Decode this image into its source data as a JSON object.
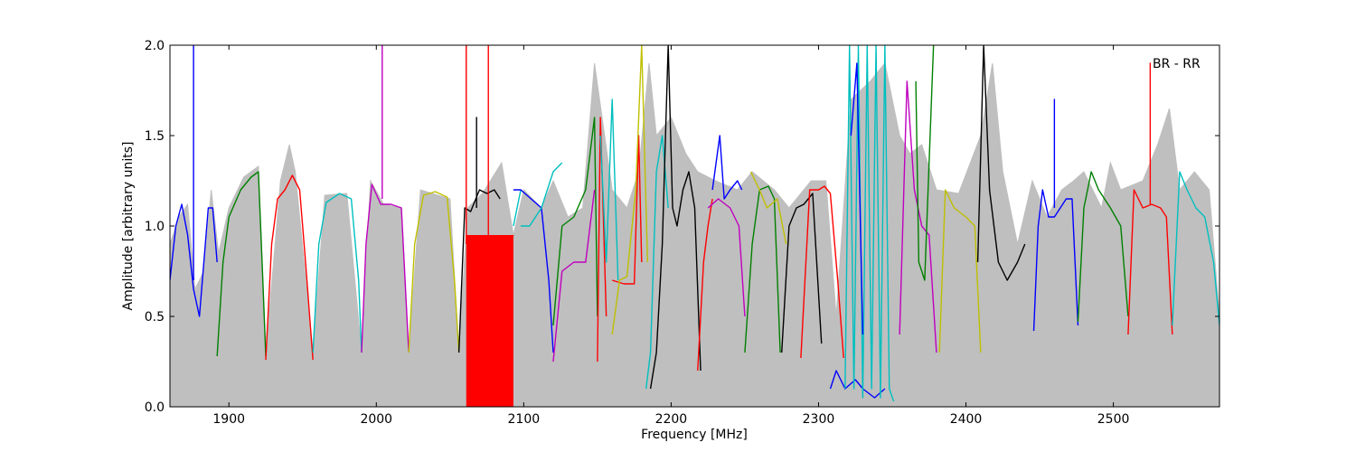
{
  "chart_data": {
    "type": "line",
    "title": "",
    "xlabel": "Frequency [MHz]",
    "ylabel": "Amplitude [arbitrary units]",
    "xlim": [
      1860,
      2572
    ],
    "ylim": [
      0.0,
      2.0
    ],
    "xticks": [
      1900,
      2000,
      2100,
      2200,
      2300,
      2400,
      2500
    ],
    "yticks": [
      0.0,
      0.5,
      1.0,
      1.5,
      2.0
    ],
    "xtick_labels": [
      "1900",
      "2000",
      "2100",
      "2200",
      "2300",
      "2400",
      "2500"
    ],
    "ytick_labels": [
      "0.0",
      "0.5",
      "1.0",
      "1.5",
      "2.0"
    ],
    "annotation": "BR - RR",
    "grid": false,
    "envelope_color": "#bfbfbf",
    "envelope": [
      [
        1860,
        0.9
      ],
      [
        1866,
        1.05
      ],
      [
        1872,
        1.12
      ],
      [
        1877,
        0.65
      ],
      [
        1883,
        0.75
      ],
      [
        1888,
        1.2
      ],
      [
        1893,
        0.85
      ],
      [
        1900,
        1.1
      ],
      [
        1910,
        1.27
      ],
      [
        1920,
        1.33
      ],
      [
        1925,
        0.3
      ],
      [
        1935,
        1.25
      ],
      [
        1941,
        1.45
      ],
      [
        1945,
        1.3
      ],
      [
        1957,
        0.3
      ],
      [
        1965,
        1.17
      ],
      [
        1980,
        1.18
      ],
      [
        1990,
        0.3
      ],
      [
        1996,
        1.25
      ],
      [
        2005,
        1.12
      ],
      [
        2017,
        1.1
      ],
      [
        2022,
        0.3
      ],
      [
        2030,
        1.2
      ],
      [
        2050,
        1.15
      ],
      [
        2056,
        0.3
      ],
      [
        2062,
        1.1
      ],
      [
        2072,
        1.18
      ],
      [
        2085,
        1.35
      ],
      [
        2093,
        0.95
      ],
      [
        2100,
        1.2
      ],
      [
        2112,
        1.1
      ],
      [
        2120,
        1.25
      ],
      [
        2130,
        1.05
      ],
      [
        2140,
        1.1
      ],
      [
        2148,
        1.9
      ],
      [
        2160,
        1.2
      ],
      [
        2170,
        1.1
      ],
      [
        2178,
        1.3
      ],
      [
        2185,
        1.9
      ],
      [
        2190,
        1.5
      ],
      [
        2200,
        1.6
      ],
      [
        2210,
        1.4
      ],
      [
        2218,
        1.3
      ],
      [
        2230,
        1.25
      ],
      [
        2245,
        1.2
      ],
      [
        2255,
        1.3
      ],
      [
        2270,
        1.2
      ],
      [
        2280,
        1.1
      ],
      [
        2295,
        1.25
      ],
      [
        2305,
        1.25
      ],
      [
        2312,
        0.5
      ],
      [
        2322,
        1.7
      ],
      [
        2335,
        1.8
      ],
      [
        2345,
        1.9
      ],
      [
        2355,
        1.5
      ],
      [
        2362,
        1.4
      ],
      [
        2370,
        1.45
      ],
      [
        2380,
        1.2
      ],
      [
        2395,
        1.18
      ],
      [
        2410,
        1.5
      ],
      [
        2418,
        1.9
      ],
      [
        2425,
        1.3
      ],
      [
        2435,
        0.9
      ],
      [
        2445,
        1.25
      ],
      [
        2455,
        1.05
      ],
      [
        2465,
        1.2
      ],
      [
        2473,
        1.25
      ],
      [
        2480,
        1.3
      ],
      [
        2492,
        1.1
      ],
      [
        2498,
        1.35
      ],
      [
        2505,
        1.2
      ],
      [
        2520,
        1.25
      ],
      [
        2530,
        1.45
      ],
      [
        2538,
        1.65
      ],
      [
        2545,
        1.2
      ],
      [
        2555,
        1.3
      ],
      [
        2565,
        1.2
      ],
      [
        2572,
        0.5
      ]
    ],
    "series": [
      {
        "color": "#0000ff",
        "x": [
          1860,
          1864,
          1868,
          1872,
          1876,
          1880,
          1883,
          1886,
          1889,
          1892
        ],
        "y": [
          0.7,
          1.0,
          1.12,
          0.95,
          0.65,
          0.5,
          0.8,
          1.1,
          1.1,
          0.8
        ]
      },
      {
        "color": "#0000ff",
        "x": [
          1876,
          1876,
          1876
        ],
        "y": [
          0.7,
          2.0,
          0.7
        ]
      },
      {
        "color": "#008000",
        "x": [
          1892,
          1896,
          1900,
          1908,
          1915,
          1920,
          1923,
          1925
        ],
        "y": [
          0.28,
          0.8,
          1.05,
          1.2,
          1.27,
          1.3,
          0.7,
          0.28
        ]
      },
      {
        "color": "#ff0000",
        "x": [
          1925,
          1929,
          1933,
          1938,
          1943,
          1948,
          1952,
          1957
        ],
        "y": [
          0.26,
          0.9,
          1.15,
          1.2,
          1.28,
          1.2,
          0.8,
          0.26
        ]
      },
      {
        "color": "#00bfbf",
        "x": [
          1957,
          1961,
          1966,
          1975,
          1983,
          1988,
          1990
        ],
        "y": [
          0.3,
          0.9,
          1.13,
          1.18,
          1.15,
          0.7,
          0.3
        ]
      },
      {
        "color": "#bf00bf",
        "x": [
          1990,
          1993,
          1997,
          2003,
          2010,
          2017,
          2022
        ],
        "y": [
          0.3,
          0.9,
          1.23,
          1.12,
          1.12,
          1.1,
          0.3
        ]
      },
      {
        "color": "#bf00bf",
        "x": [
          2004,
          2004,
          2004
        ],
        "y": [
          1.15,
          2.0,
          1.15
        ]
      },
      {
        "color": "#bfbf00",
        "x": [
          2022,
          2026,
          2032,
          2040,
          2048,
          2053,
          2056
        ],
        "y": [
          0.3,
          0.9,
          1.17,
          1.19,
          1.16,
          0.7,
          0.3
        ]
      },
      {
        "color": "#000000",
        "x": [
          2056,
          2060,
          2064,
          2070,
          2075,
          2080,
          2084
        ],
        "y": [
          0.3,
          1.1,
          1.08,
          1.2,
          1.18,
          1.2,
          1.15
        ]
      },
      {
        "color": "#000000",
        "x": [
          2068,
          2068,
          2068
        ],
        "y": [
          1.1,
          1.6,
          1.1
        ]
      },
      {
        "color": "#ff0000",
        "x": [
          2062,
          2070,
          2078,
          2086,
          2093
        ],
        "y": [
          0.95,
          0.85,
          0.9,
          0.85,
          0.95
        ]
      },
      {
        "color": "#ff0000",
        "x": [
          2076,
          2076,
          2076
        ],
        "y": [
          0.9,
          2.0,
          0.9
        ]
      },
      {
        "color": "#ff0000",
        "x": [
          2061,
          2061,
          2061
        ],
        "y": [
          0.9,
          2.0,
          0.9
        ]
      },
      {
        "color": "#00bfbf",
        "x": [
          2093,
          2098
        ],
        "y": [
          1.0,
          1.2
        ]
      },
      {
        "color": "#0000ff",
        "x": [
          2093,
          2098,
          2105,
          2112,
          2117,
          2120
        ],
        "y": [
          1.2,
          1.2,
          1.15,
          1.1,
          0.7,
          0.3
        ]
      },
      {
        "color": "#00bfbf",
        "x": [
          2098,
          2104,
          2112,
          2120,
          2126
        ],
        "y": [
          1.0,
          1.0,
          1.1,
          1.3,
          1.35
        ]
      },
      {
        "color": "#008000",
        "x": [
          2120,
          2126,
          2134,
          2142,
          2148,
          2150
        ],
        "y": [
          0.45,
          1.0,
          1.05,
          1.2,
          1.6,
          0.5
        ]
      },
      {
        "color": "#bf00bf",
        "x": [
          2120,
          2126,
          2134,
          2142,
          2148
        ],
        "y": [
          0.25,
          0.75,
          0.8,
          0.8,
          1.2
        ]
      },
      {
        "color": "#ff0000",
        "x": [
          2150,
          2152,
          2156
        ],
        "y": [
          0.25,
          1.6,
          0.5
        ]
      },
      {
        "color": "#00bfbf",
        "x": [
          2152,
          2156,
          2160,
          2164
        ],
        "y": [
          1.5,
          0.8,
          1.7,
          0.7
        ]
      },
      {
        "color": "#ff0000",
        "x": [
          2160,
          2168,
          2175,
          2178,
          2180
        ],
        "y": [
          0.7,
          0.68,
          0.68,
          1.5,
          0.8
        ]
      },
      {
        "color": "#bfbf00",
        "x": [
          2160,
          2165,
          2170,
          2176,
          2180,
          2184
        ],
        "y": [
          0.4,
          0.7,
          0.72,
          1.2,
          2.0,
          0.8
        ]
      },
      {
        "color": "#00bfbf",
        "x": [
          2183,
          2186,
          2190,
          2194,
          2198
        ],
        "y": [
          0.1,
          0.3,
          1.3,
          1.5,
          1.1
        ]
      },
      {
        "color": "#000000",
        "x": [
          2186,
          2190,
          2194,
          2198,
          2201,
          2204,
          2208,
          2212,
          2216,
          2220
        ],
        "y": [
          0.1,
          0.3,
          0.9,
          2.0,
          1.1,
          1.0,
          1.2,
          1.3,
          1.1,
          0.2
        ]
      },
      {
        "color": "#ff0000",
        "x": [
          2218,
          2222,
          2225,
          2228
        ],
        "y": [
          0.2,
          0.8,
          1.0,
          1.15
        ]
      },
      {
        "color": "#bf00bf",
        "x": [
          2225,
          2232,
          2240,
          2246,
          2250
        ],
        "y": [
          1.1,
          1.15,
          1.1,
          1.0,
          0.5
        ]
      },
      {
        "color": "#0000ff",
        "x": [
          2228,
          2233,
          2236,
          2240,
          2245,
          2248
        ],
        "y": [
          1.2,
          1.5,
          1.15,
          1.2,
          1.25,
          1.2
        ]
      },
      {
        "color": "#008000",
        "x": [
          2250,
          2255,
          2260,
          2266,
          2270,
          2274
        ],
        "y": [
          0.3,
          0.9,
          1.2,
          1.22,
          1.15,
          0.3
        ]
      },
      {
        "color": "#bfbf00",
        "x": [
          2254,
          2260,
          2265,
          2272,
          2278
        ],
        "y": [
          1.3,
          1.2,
          1.1,
          1.15,
          0.9
        ]
      },
      {
        "color": "#000000",
        "x": [
          2275,
          2280,
          2285,
          2290,
          2296,
          2302
        ],
        "y": [
          0.3,
          1.0,
          1.1,
          1.12,
          1.18,
          0.35
        ]
      },
      {
        "color": "#ff0000",
        "x": [
          2288,
          2294,
          2300,
          2304,
          2308,
          2313,
          2317
        ],
        "y": [
          0.27,
          1.2,
          1.2,
          1.22,
          1.18,
          0.7,
          0.27
        ]
      },
      {
        "color": "#0000ff",
        "x": [
          2308,
          2312,
          2318,
          2325,
          2330,
          2338,
          2345
        ],
        "y": [
          0.1,
          0.2,
          0.1,
          0.15,
          0.1,
          0.05,
          0.1
        ]
      },
      {
        "color": "#00bfbf",
        "x": [
          2318,
          2321,
          2324,
          2327,
          2330,
          2333,
          2336,
          2339,
          2342,
          2345,
          2348,
          2351
        ],
        "y": [
          0.1,
          2.0,
          0.1,
          2.0,
          0.05,
          2.0,
          0.1,
          2.0,
          0.05,
          2.0,
          0.1,
          0.03
        ]
      },
      {
        "color": "#0000ff",
        "x": [
          2322,
          2326,
          2330
        ],
        "y": [
          1.5,
          1.9,
          0.4
        ]
      },
      {
        "color": "#bf00bf",
        "x": [
          2355,
          2360,
          2365,
          2370,
          2375,
          2380
        ],
        "y": [
          0.4,
          1.8,
          1.2,
          1.0,
          0.95,
          0.3
        ]
      },
      {
        "color": "#008000",
        "x": [
          2366,
          2368,
          2372,
          2378
        ],
        "y": [
          1.8,
          0.8,
          0.7,
          2.0
        ]
      },
      {
        "color": "#bfbf00",
        "x": [
          2382,
          2386,
          2392,
          2400,
          2406,
          2410
        ],
        "y": [
          0.3,
          1.2,
          1.1,
          1.05,
          1.0,
          0.3
        ]
      },
      {
        "color": "#000000",
        "x": [
          2408,
          2412,
          2416,
          2422,
          2428,
          2435,
          2440
        ],
        "y": [
          0.8,
          2.0,
          1.2,
          0.8,
          0.7,
          0.8,
          0.9
        ]
      },
      {
        "color": "#0000ff",
        "x": [
          2446,
          2449,
          2452,
          2456,
          2460,
          2464,
          2468,
          2472,
          2476
        ],
        "y": [
          0.42,
          1.0,
          1.2,
          1.05,
          1.05,
          1.1,
          1.15,
          1.15,
          0.45
        ]
      },
      {
        "color": "#0000ff",
        "x": [
          2460,
          2460,
          2460
        ],
        "y": [
          1.1,
          1.7,
          1.1
        ]
      },
      {
        "color": "#008000",
        "x": [
          2476,
          2480,
          2485,
          2490,
          2498,
          2505,
          2510
        ],
        "y": [
          0.47,
          1.1,
          1.3,
          1.2,
          1.1,
          1.0,
          0.5
        ]
      },
      {
        "color": "#ff0000",
        "x": [
          2510,
          2514,
          2520,
          2526,
          2532,
          2536,
          2540
        ],
        "y": [
          0.4,
          1.2,
          1.1,
          1.12,
          1.1,
          1.05,
          0.4
        ]
      },
      {
        "color": "#ff0000",
        "x": [
          2525,
          2525,
          2525
        ],
        "y": [
          1.12,
          1.9,
          1.12
        ]
      },
      {
        "color": "#00bfbf",
        "x": [
          2540,
          2545,
          2550,
          2556,
          2562,
          2568,
          2572
        ],
        "y": [
          0.45,
          1.3,
          1.2,
          1.1,
          1.05,
          0.8,
          0.45
        ]
      }
    ],
    "red_band": {
      "color": "#ff0000",
      "x0": 2061,
      "x1": 2093,
      "y_top": 0.95
    }
  }
}
